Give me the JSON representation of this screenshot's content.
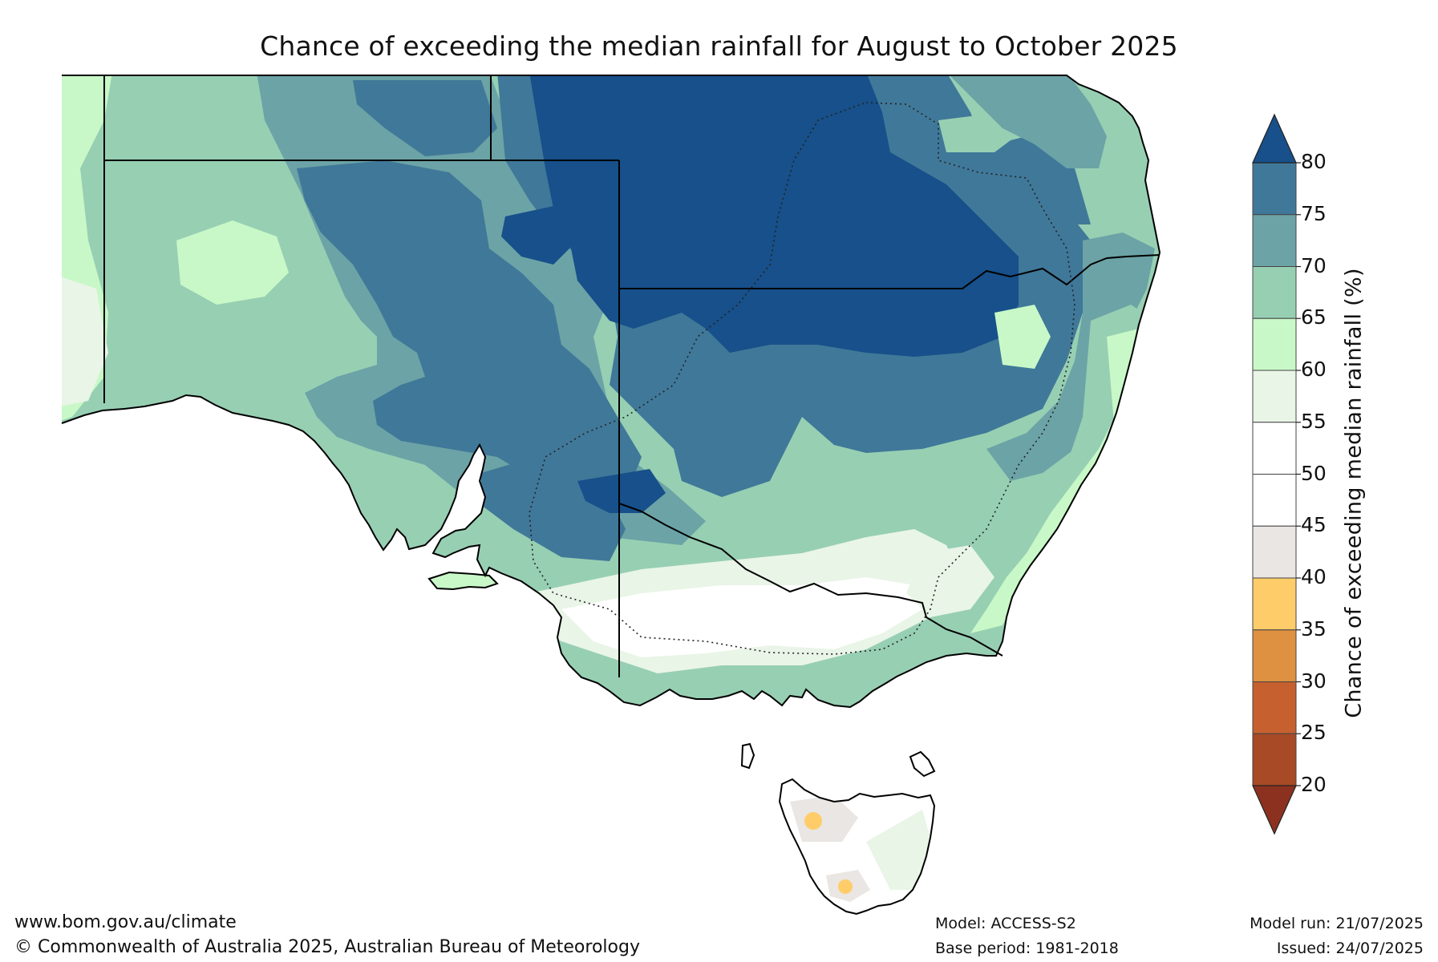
{
  "title": "Chance of exceeding the median rainfall for August to October 2025",
  "colorbar": {
    "label": "Chance of exceeding median rainfall (%)",
    "ticks": [
      "20",
      "25",
      "30",
      "35",
      "40",
      "45",
      "50",
      "55",
      "60",
      "65",
      "70",
      "75",
      "80"
    ],
    "bins": [
      {
        "range": "20-25",
        "color": "#a84a26"
      },
      {
        "range": "25-30",
        "color": "#c6602f"
      },
      {
        "range": "30-35",
        "color": "#de9140"
      },
      {
        "range": "35-40",
        "color": "#fecd6a"
      },
      {
        "range": "40-45",
        "color": "#e9e6e3"
      },
      {
        "range": "45-50",
        "color": "#ffffff"
      },
      {
        "range": "50-55",
        "color": "#ffffff"
      },
      {
        "range": "55-60",
        "color": "#e9f5e7"
      },
      {
        "range": "60-65",
        "color": "#c8f8c7"
      },
      {
        "range": "65-70",
        "color": "#97cfb3"
      },
      {
        "range": "70-75",
        "color": "#6ca3a6"
      },
      {
        "range": "75-80",
        "color": "#407899"
      }
    ],
    "over_color": "#17508a",
    "under_color": "#8c3120"
  },
  "footer": {
    "website": "www.bom.gov.au/climate",
    "copyright": "© Commonwealth of Australia 2025, Australian Bureau of Meteorology",
    "model": "Model: ACCESS-S2",
    "base_period": "Base period: 1981-2018",
    "model_run": "Model run: 21/07/2025",
    "issued": "Issued: 24/07/2025"
  }
}
